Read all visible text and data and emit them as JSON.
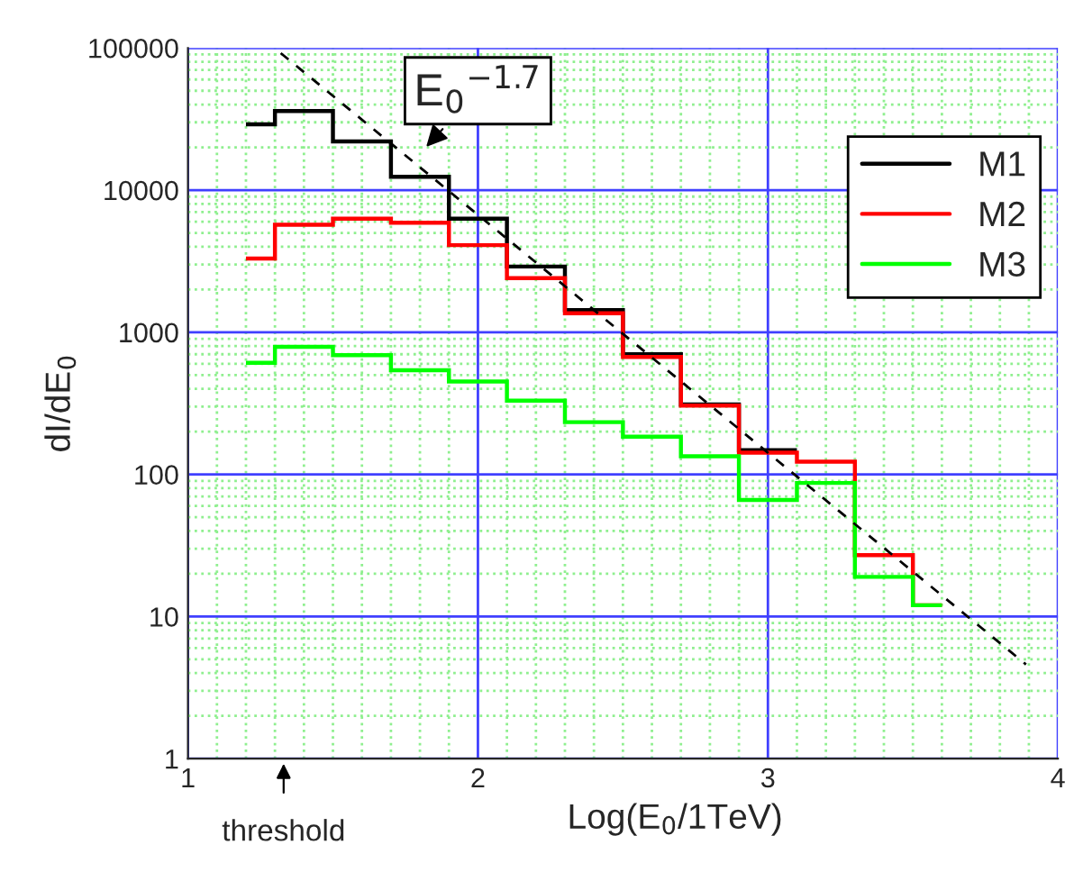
{
  "chart_data": {
    "type": "histogram",
    "xlabel": "Log(E$_{0}$/1TeV)",
    "ylabel": "dI/dE$_{0}$",
    "bins": [
      1.2,
      1.3,
      1.5,
      1.7,
      1.9,
      2.1,
      2.3,
      2.5,
      2.7,
      2.9,
      3.1,
      3.3,
      3.5,
      3.6
    ],
    "series": [
      {
        "name": "M1",
        "color": "#000000",
        "bins": [
          1.2,
          1.3,
          1.5,
          1.7,
          1.9,
          2.1,
          2.3,
          2.5,
          2.7,
          2.9,
          3.1
        ],
        "values": [
          29000,
          36000,
          22000,
          12400,
          6300,
          2900,
          1430,
          700,
          310,
          148
        ]
      },
      {
        "name": "M2",
        "color": "#ff0000",
        "values": [
          3300,
          5700,
          6300,
          5900,
          4100,
          2400,
          1360,
          670,
          305,
          142,
          123,
          27,
          12
        ]
      },
      {
        "name": "M3",
        "color": "#00ff00",
        "values": [
          610,
          790,
          690,
          540,
          450,
          330,
          233,
          184,
          134,
          66,
          87,
          19,
          12
        ]
      },
      {
        "type": "line",
        "color": "#000000",
        "line_style": "dashed",
        "x": [
          1.32,
          3.89
        ],
        "values": [
          92000,
          4.6
        ]
      }
    ],
    "annotations": [
      "E$_{0}$$^{−1.7}$",
      "threshold"
    ],
    "log": "y",
    "xlim": [
      1,
      4
    ],
    "ylim": [
      1,
      100000
    ],
    "xticks": [
      1,
      {
        "value": 1.1,
        "label": null
      },
      {
        "value": 1.2,
        "label": null
      },
      {
        "value": 1.3,
        "label": null
      },
      {
        "value": 1.4,
        "label": null
      },
      {
        "value": 1.5,
        "label": null
      },
      {
        "value": 1.6,
        "label": null
      },
      {
        "value": 1.7,
        "label": null
      },
      {
        "value": 1.8,
        "label": null
      },
      {
        "value": 1.9,
        "label": null
      },
      2,
      {
        "value": 2.1,
        "label": null
      },
      {
        "value": 2.2,
        "label": null
      },
      {
        "value": 2.3,
        "label": null
      },
      {
        "value": 2.4,
        "label": null
      },
      {
        "value": 2.5,
        "label": null
      },
      {
        "value": 2.6,
        "label": null
      },
      {
        "value": 2.7,
        "label": null
      },
      {
        "value": 2.8,
        "label": null
      },
      {
        "value": 2.9,
        "label": null
      },
      3,
      {
        "value": 3.1,
        "label": null
      },
      {
        "value": 3.2,
        "label": null
      },
      {
        "value": 3.3,
        "label": null
      },
      {
        "value": 3.4,
        "label": null
      },
      {
        "value": 3.5,
        "label": null
      },
      {
        "value": 3.6,
        "label": null
      },
      {
        "value": 3.7,
        "label": null
      },
      {
        "value": 3.8,
        "label": null
      },
      {
        "value": 3.9,
        "label": null
      },
      4
    ],
    "yticks": [
      1,
      {
        "value": 2,
        "label": null
      },
      {
        "value": 3,
        "label": null
      },
      {
        "value": 4,
        "label": null
      },
      {
        "value": 5,
        "label": null
      },
      {
        "value": 6,
        "label": null
      },
      {
        "value": 7,
        "label": null
      },
      {
        "value": 8,
        "label": null
      },
      {
        "value": 9,
        "label": null
      },
      10,
      {
        "value": 20,
        "label": null
      },
      {
        "value": 30,
        "label": null
      },
      {
        "value": 40,
        "label": null
      },
      {
        "value": 50,
        "label": null
      },
      {
        "value": 60,
        "label": null
      },
      {
        "value": 70,
        "label": null
      },
      {
        "value": 80,
        "label": null
      },
      {
        "value": 90,
        "label": null
      },
      100,
      {
        "value": 200,
        "label": null
      },
      {
        "value": 300,
        "label": null
      },
      {
        "value": 400,
        "label": null
      },
      {
        "value": 500,
        "label": null
      },
      {
        "value": 600,
        "label": null
      },
      {
        "value": 700,
        "label": null
      },
      {
        "value": 800,
        "label": null
      },
      {
        "value": 900,
        "label": null
      },
      1000,
      {
        "value": 2000,
        "label": null
      },
      {
        "value": 3000,
        "label": null
      },
      {
        "value": 4000,
        "label": null
      },
      {
        "value": 5000,
        "label": null
      },
      {
        "value": 6000,
        "label": null
      },
      {
        "value": 7000,
        "label": null
      },
      {
        "value": 8000,
        "label": null
      },
      {
        "value": 9000,
        "label": null
      },
      10000,
      {
        "value": 20000,
        "label": null
      },
      {
        "value": 30000,
        "label": null
      },
      {
        "value": 40000,
        "label": null
      },
      {
        "value": 50000,
        "label": null
      },
      {
        "value": 60000,
        "label": null
      },
      {
        "value": 70000,
        "label": null
      },
      {
        "value": 80000,
        "label": null
      },
      {
        "value": 90000,
        "label": null
      },
      100000
    ],
    "grid": true,
    "legend": "top right"
  }
}
